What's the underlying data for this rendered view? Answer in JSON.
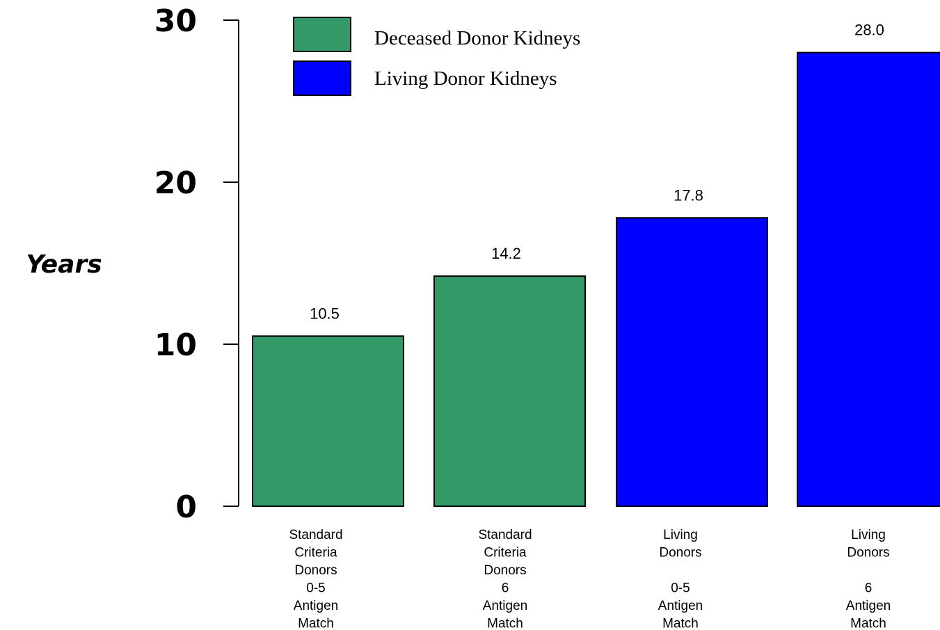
{
  "chart_data": {
    "type": "bar",
    "title": "",
    "xlabel": "",
    "ylabel": "Years",
    "ylim": [
      0,
      30
    ],
    "yticks": [
      0,
      10,
      20,
      30
    ],
    "grid": false,
    "legend_position": "top-left",
    "categories": [
      [
        "Standard",
        "Criteria",
        "Donors",
        "0-5",
        "Antigen",
        "Match"
      ],
      [
        "Standard",
        "Criteria",
        "Donors",
        "6",
        "Antigen",
        "Match"
      ],
      [
        "Living",
        "Donors",
        "",
        "0-5",
        "Antigen",
        "Match"
      ],
      [
        "Living",
        "Donors",
        "",
        "6",
        "Antigen",
        "Match"
      ]
    ],
    "values": [
      10.5,
      14.2,
      17.8,
      28.0
    ],
    "value_labels": [
      "10.5",
      "14.2",
      "17.8",
      "28.0"
    ],
    "bar_series": [
      0,
      0,
      1,
      1
    ],
    "series": [
      {
        "name": "Deceased Donor Kidneys",
        "color": "#339966"
      },
      {
        "name": "Living Donor Kidneys",
        "color": "#0000FF"
      }
    ]
  }
}
